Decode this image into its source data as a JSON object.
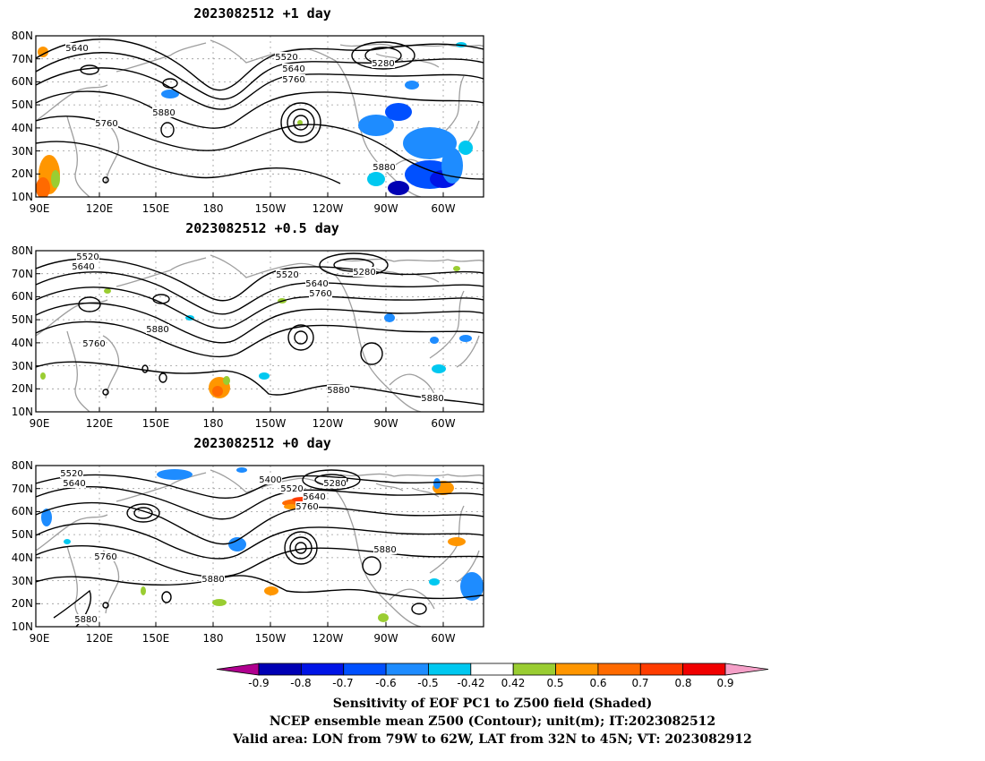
{
  "map": {
    "panels": [
      {
        "title": "2023082512  +1 day",
        "contour_labels": [
          "5640",
          "5520",
          "5640",
          "5760",
          "5280",
          "5760",
          "5880",
          "5880"
        ]
      },
      {
        "title": "2023082512  +0.5 day",
        "contour_labels": [
          "5520",
          "5640",
          "5520",
          "5280",
          "5640",
          "5760",
          "5880",
          "5760",
          "5880",
          "5880"
        ]
      },
      {
        "title": "2023082512  +0 day",
        "contour_labels": [
          "5520",
          "5640",
          "5400",
          "5280",
          "5520",
          "5640",
          "5760",
          "5880",
          "5760",
          "5880",
          "5880"
        ]
      }
    ],
    "lat_labels": [
      "80N",
      "70N",
      "60N",
      "50N",
      "40N",
      "30N",
      "20N",
      "10N"
    ],
    "lon_labels": [
      "90E",
      "120E",
      "150E",
      "180",
      "150W",
      "120W",
      "90W",
      "60W"
    ],
    "colorbar": {
      "tick_labels": [
        "-0.9",
        "-0.8",
        "-0.7",
        "-0.6",
        "-0.5",
        "-0.42",
        "0.42",
        "0.5",
        "0.6",
        "0.7",
        "0.8",
        "0.9"
      ],
      "colors": [
        "#b0008f",
        "#0000b4",
        "#0014e6",
        "#0050ff",
        "#1e8cff",
        "#00c8f0",
        "#ffffff",
        "#9acd32",
        "#ff9600",
        "#ff6a00",
        "#ff3c00",
        "#f00000",
        "#f5a0c8"
      ]
    },
    "caption": [
      "Sensitivity of EOF PC1 to Z500 field (Shaded)",
      "NCEP ensemble mean Z500 (Contour); unit(m); IT:2023082512",
      "Valid area: LON from 79W to 62W, LAT from 32N to 45N; VT: 2023082912"
    ]
  }
}
